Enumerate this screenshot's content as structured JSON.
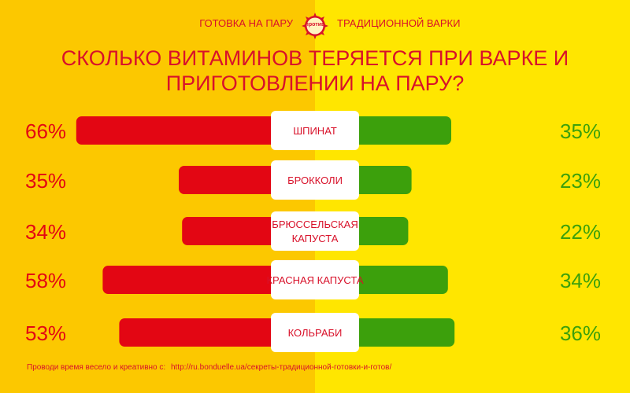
{
  "header": {
    "left_text": "ГОТОВКА НА ПАРУ",
    "badge_text": "против",
    "right_text": "ТРАДИЦИОННОЙ ВАРКИ"
  },
  "title_line1": "СКОЛЬКО ВИТАМИНОВ ТЕРЯЕТСЯ ПРИ ВАРКЕ И",
  "title_line2": "ПРИГОТОВЛЕНИИ НА ПАРУ?",
  "footer": {
    "text": "Проводи время весело и креативно с:",
    "url": "http://ru.bonduelle.ua/секреты-традиционной-готовки-и-готов/"
  },
  "colors": {
    "boiling": "#e30613",
    "steaming": "#3ca00c",
    "label_text": "#d8112a"
  },
  "chart_data": {
    "type": "bar",
    "categories": [
      [
        "ШПИНАТ"
      ],
      [
        "БРОККОЛИ"
      ],
      [
        "БРЮССЕЛЬСКАЯ",
        "КАПУСТА"
      ],
      [
        "КРАСНАЯ КАПУСТА"
      ],
      [
        "КОЛЬРАБИ"
      ]
    ],
    "series": [
      {
        "values": [
          66,
          35,
          34,
          58,
          53
        ],
        "labels": [
          "66%",
          "35%",
          "34%",
          "58%",
          "53%"
        ]
      },
      {
        "values": [
          35,
          23,
          22,
          34,
          36
        ],
        "labels": [
          "35%",
          "23%",
          "22%",
          "34%",
          "36%"
        ]
      }
    ]
  }
}
